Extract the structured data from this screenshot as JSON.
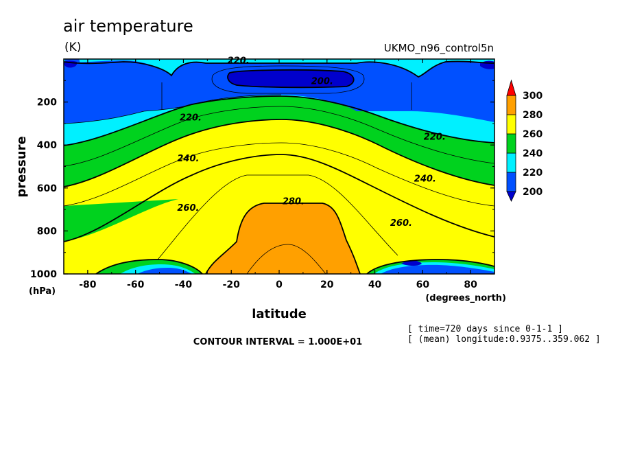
{
  "chart_data": {
    "type": "heatmap",
    "title": "air temperature",
    "units": "(K)",
    "dataset": "UKMO_n96_control5n",
    "xlabel": "latitude",
    "x_units": "(degrees_north)",
    "ylabel": "pressure",
    "y_units": "(hPa)",
    "xlim": [
      -90,
      90
    ],
    "ylim": [
      1000,
      0
    ],
    "x_ticks": [
      -80,
      -60,
      -40,
      -20,
      0,
      20,
      40,
      60,
      80
    ],
    "y_ticks": [
      200,
      400,
      600,
      800,
      1000
    ],
    "x_tick_labels": [
      "-80",
      "-60",
      "-40",
      "-20",
      "0",
      "20",
      "40",
      "60",
      "80"
    ],
    "y_tick_labels": [
      "200",
      "400",
      "600",
      "800",
      "1000"
    ],
    "contour_interval_text": "CONTOUR INTERVAL = 1.000E+01",
    "notes": [
      "[ time=720 days since 0-1-1 ]",
      "[ (mean) longitude:0.9375..359.062 ]"
    ],
    "colorbar": {
      "levels": [
        200,
        220,
        240,
        260,
        280,
        300
      ],
      "labels": [
        "300",
        "280",
        "260",
        "240",
        "220",
        "200"
      ],
      "colors": [
        "#0050ff",
        "#00f0ff",
        "#00d21e",
        "#ffff00",
        "#ffa000"
      ],
      "under_color": "#0000cc",
      "over_color": "#ff0000"
    },
    "contour_labels": [
      {
        "text": "220.",
        "lat": -17,
        "p": 5
      },
      {
        "text": "200.",
        "lat": 18,
        "p": 100
      },
      {
        "text": "220.",
        "lat": -37,
        "p": 270
      },
      {
        "text": "220.",
        "lat": 65,
        "p": 360
      },
      {
        "text": "240.",
        "lat": -38,
        "p": 460
      },
      {
        "text": "240.",
        "lat": 61,
        "p": 555
      },
      {
        "text": "260.",
        "lat": -38,
        "p": 690
      },
      {
        "text": "280.",
        "lat": 6,
        "p": 660
      },
      {
        "text": "260.",
        "lat": 51,
        "p": 760
      }
    ]
  }
}
